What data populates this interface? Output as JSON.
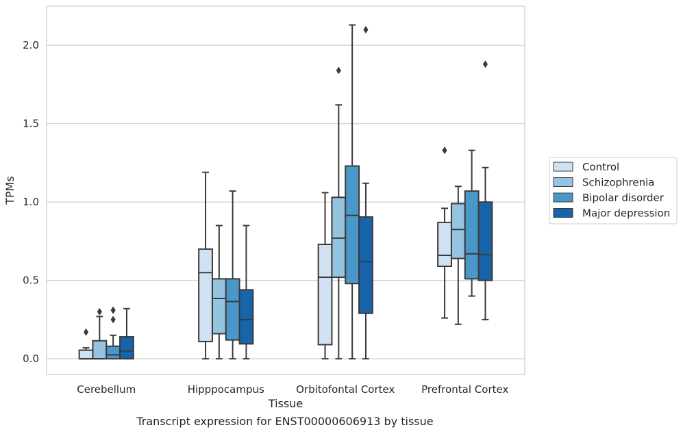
{
  "caption": "Transcript expression for ENST00000606913 by tissue",
  "chart_data": {
    "type": "boxplot",
    "title": "",
    "xlabel": "Tissue",
    "ylabel": "TPMs",
    "ylim": [
      -0.1,
      2.25
    ],
    "yticks": [
      0.0,
      0.5,
      1.0,
      1.5,
      2.0
    ],
    "ytick_labels": [
      "0.0",
      "0.5",
      "1.0",
      "1.5",
      "2.0"
    ],
    "grid": "horizontal",
    "legend_position": "right",
    "categories": [
      "Cerebellum",
      "Hipppocampus",
      "Orbitofontal Cortex",
      "Prefrontal Cortex"
    ],
    "series": [
      {
        "name": "Control",
        "color": "#d0e1f2",
        "boxes": [
          {
            "whislo": 0.0,
            "q1": 0.0,
            "med": 0.0,
            "q3": 0.055,
            "whishi": 0.07,
            "fliers": [
              0.17
            ]
          },
          {
            "whislo": 0.0,
            "q1": 0.11,
            "med": 0.55,
            "q3": 0.7,
            "whishi": 1.19,
            "fliers": []
          },
          {
            "whislo": 0.0,
            "q1": 0.09,
            "med": 0.52,
            "q3": 0.73,
            "whishi": 1.06,
            "fliers": []
          },
          {
            "whislo": 0.26,
            "q1": 0.59,
            "med": 0.66,
            "q3": 0.87,
            "whishi": 0.96,
            "fliers": [
              1.33
            ]
          }
        ]
      },
      {
        "name": "Schizophrenia",
        "color": "#94c4df",
        "boxes": [
          {
            "whislo": 0.0,
            "q1": 0.0,
            "med": 0.0,
            "q3": 0.115,
            "whishi": 0.27,
            "fliers": [
              0.3
            ]
          },
          {
            "whislo": 0.0,
            "q1": 0.16,
            "med": 0.385,
            "q3": 0.51,
            "whishi": 0.85,
            "fliers": []
          },
          {
            "whislo": 0.0,
            "q1": 0.52,
            "med": 0.77,
            "q3": 1.03,
            "whishi": 1.62,
            "fliers": [
              1.84
            ]
          },
          {
            "whislo": 0.22,
            "q1": 0.64,
            "med": 0.825,
            "q3": 0.99,
            "whishi": 1.1,
            "fliers": []
          }
        ]
      },
      {
        "name": "Bipolar disorder",
        "color": "#4a98c9",
        "boxes": [
          {
            "whislo": 0.0,
            "q1": 0.0,
            "med": 0.025,
            "q3": 0.08,
            "whishi": 0.15,
            "fliers": [
              0.25,
              0.31
            ]
          },
          {
            "whislo": 0.0,
            "q1": 0.12,
            "med": 0.365,
            "q3": 0.51,
            "whishi": 1.07,
            "fliers": []
          },
          {
            "whislo": 0.0,
            "q1": 0.48,
            "med": 0.915,
            "q3": 1.23,
            "whishi": 2.13,
            "fliers": []
          },
          {
            "whislo": 0.4,
            "q1": 0.51,
            "med": 0.67,
            "q3": 1.07,
            "whishi": 1.33,
            "fliers": []
          }
        ]
      },
      {
        "name": "Major depression",
        "color": "#1764ab",
        "boxes": [
          {
            "whislo": 0.0,
            "q1": 0.0,
            "med": 0.05,
            "q3": 0.14,
            "whishi": 0.32,
            "fliers": []
          },
          {
            "whislo": 0.0,
            "q1": 0.095,
            "med": 0.25,
            "q3": 0.44,
            "whishi": 0.85,
            "fliers": []
          },
          {
            "whislo": 0.0,
            "q1": 0.29,
            "med": 0.62,
            "q3": 0.905,
            "whishi": 1.12,
            "fliers": [
              2.1
            ]
          },
          {
            "whislo": 0.25,
            "q1": 0.5,
            "med": 0.665,
            "q3": 1.0,
            "whishi": 1.22,
            "fliers": [
              1.88
            ]
          }
        ]
      }
    ]
  }
}
